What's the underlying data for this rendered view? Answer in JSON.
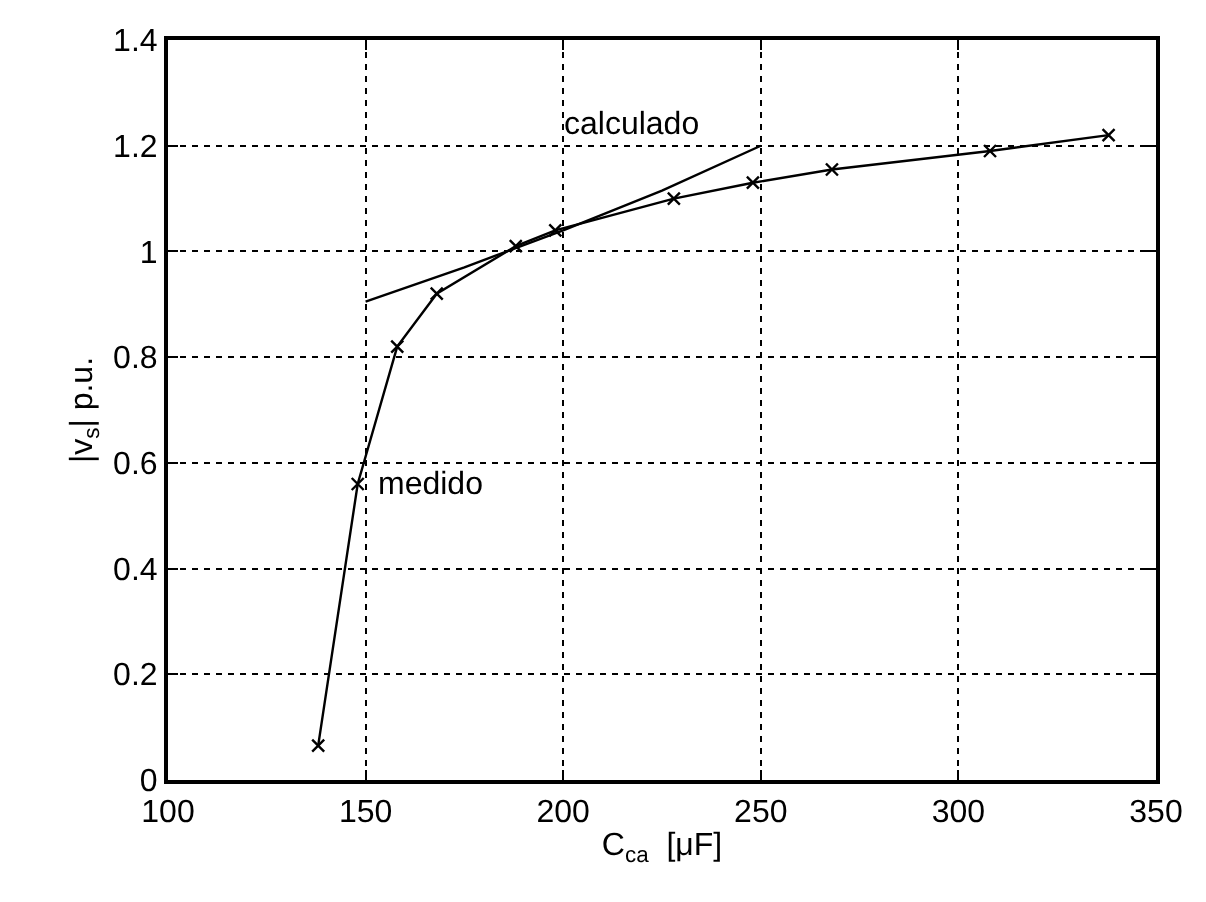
{
  "chart_data": {
    "type": "line",
    "xlabel": "C$_{ca}$  [μF]",
    "ylabel": "|v$_{s}$| p.u.",
    "xlim": [
      100,
      350
    ],
    "xticks": [
      100,
      150,
      200,
      250,
      300,
      350
    ],
    "ylim": [
      0,
      1.4
    ],
    "yticks": [
      0,
      0.2,
      0.4,
      0.6,
      {
        "value": 0.8,
        "label": "0.8"
      },
      {
        "value": 1,
        "label": "1"
      },
      1.2,
      1.4
    ],
    "grid": true,
    "legend": false,
    "series": [
      {
        "name": "medido",
        "color": "#000000",
        "marker": "cross",
        "x": [
          138,
          148,
          158,
          168,
          188,
          198,
          228,
          248,
          268,
          308,
          338
        ],
        "values": [
          0.065,
          0.56,
          0.82,
          0.92,
          1.01,
          1.04,
          1.1,
          1.13,
          1.155,
          1.19,
          1.22
        ]
      },
      {
        "name": "calculado",
        "color": "#000000",
        "marker": "none",
        "x": [
          150,
          175,
          200,
          225,
          250
        ],
        "values": [
          0.905,
          0.97,
          1.04,
          1.115,
          1.2
        ]
      }
    ]
  }
}
